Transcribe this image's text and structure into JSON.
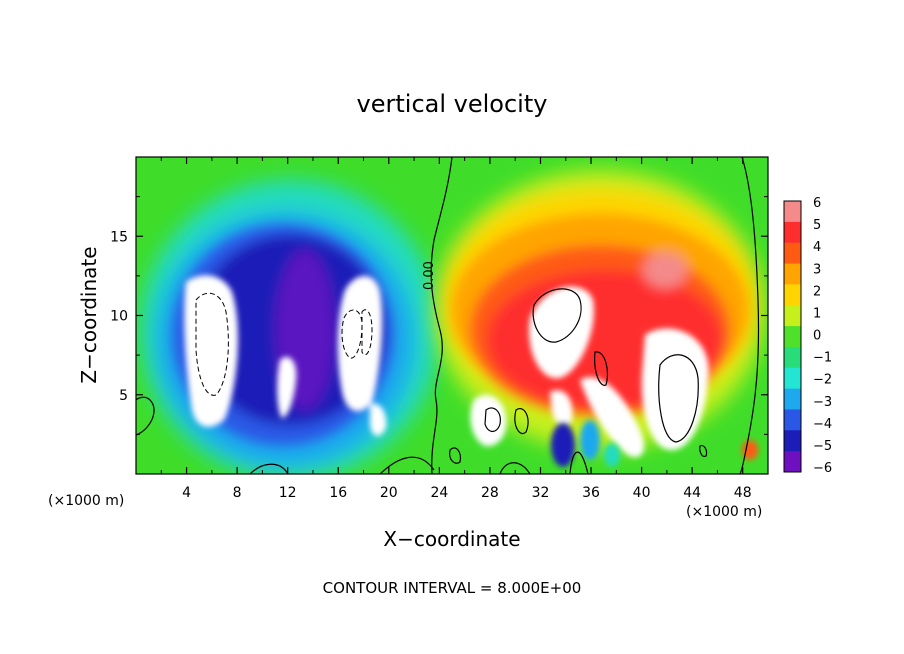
{
  "chart_data": {
    "type": "heatmap",
    "title": "vertical velocity",
    "xlabel": "X−coordinate",
    "ylabel": "Z−coordinate",
    "x_unit_left": "(×1000 m)",
    "x_unit_right": "(×1000 m)",
    "x_ticks": [
      "4",
      "8",
      "12",
      "16",
      "20",
      "24",
      "28",
      "32",
      "36",
      "40",
      "44",
      "48"
    ],
    "x_tick_values": [
      4,
      8,
      12,
      16,
      20,
      24,
      28,
      32,
      36,
      40,
      44,
      48
    ],
    "y_ticks": [
      "5",
      "10",
      "15"
    ],
    "y_tick_values": [
      5,
      10,
      15
    ],
    "xlim": [
      0,
      50
    ],
    "ylim": [
      0,
      20
    ],
    "contour_label": "0.00",
    "footer": "CONTOUR INTERVAL = 8.000E+00",
    "colorbar": {
      "labels": [
        "6",
        "5",
        "4",
        "3",
        "2",
        "1",
        "0",
        "−1",
        "−2",
        "−3",
        "−4",
        "−5",
        "−6"
      ],
      "range": [
        -6,
        6
      ],
      "colors": [
        "#f48a8a",
        "#ff2e2e",
        "#ff5a12",
        "#ffa400",
        "#ffd400",
        "#c6f01c",
        "#4fe02a",
        "#28dc7a",
        "#22e6d2",
        "#1ea8ee",
        "#2a58e6",
        "#1c1cb8",
        "#6e10c0"
      ]
    },
    "features": [
      {
        "kind": "updraft-core",
        "x": 6.3,
        "z": 8.0,
        "sign": "negative-white"
      },
      {
        "kind": "updraft-core",
        "x": 17.8,
        "z": 8.6,
        "sign": "negative-white"
      },
      {
        "kind": "updraft-core",
        "x": 32.5,
        "z": 8.5,
        "sign": "positive-white"
      },
      {
        "kind": "updraft-core",
        "x": 43.0,
        "z": 6.5,
        "sign": "positive-white"
      },
      {
        "kind": "cell",
        "x": 30.0,
        "z": 3.0,
        "sign": "positive-white"
      },
      {
        "kind": "cell",
        "x": 33.8,
        "z": 2.5,
        "sign": "negative"
      }
    ]
  }
}
